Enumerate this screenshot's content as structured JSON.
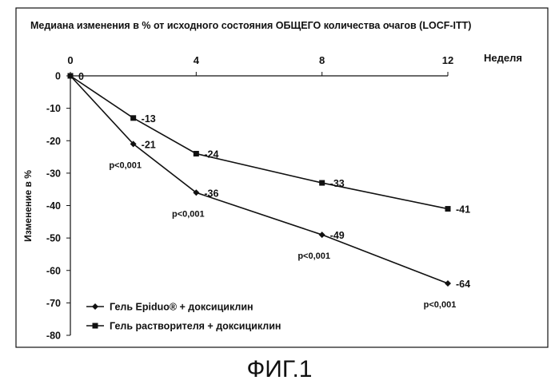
{
  "figure_caption": "ФИГ.1",
  "chart_data": {
    "type": "line",
    "title": "Медиана изменения в % от исходного состояния ОБЩЕГО количества очагов (LOCF-ITT)",
    "xlabel": "Неделя",
    "ylabel": "Изменение в %",
    "x_axis_position": "top",
    "x_ticks": [
      "0",
      "4",
      "8",
      "12"
    ],
    "y_ticks": [
      "0",
      "-10",
      "-20",
      "-30",
      "-40",
      "-50",
      "-60",
      "-70",
      "-80"
    ],
    "xlim": [
      0,
      12
    ],
    "ylim": [
      -80,
      0
    ],
    "grid": false,
    "legend_position": "bottom-left",
    "series": [
      {
        "name": "Гель Epiduo® + доксициклин",
        "marker": "diamond",
        "x": [
          0,
          2,
          4,
          8,
          12
        ],
        "y": [
          0,
          -21,
          -36,
          -49,
          -64
        ],
        "labels": [
          "",
          "-21",
          "-36",
          "-49",
          "-64"
        ]
      },
      {
        "name": "Гель растворителя + доксициклин",
        "marker": "square",
        "x": [
          0,
          2,
          4,
          8,
          12
        ],
        "y": [
          0,
          -13,
          -24,
          -33,
          -41
        ],
        "labels": [
          "0",
          "-13",
          "-24",
          "-33",
          "-41"
        ]
      }
    ],
    "annotations": [
      {
        "text": "p<0,001",
        "x": 2,
        "y": -21
      },
      {
        "text": "p<0,001",
        "x": 4,
        "y": -36
      },
      {
        "text": "p<0,001",
        "x": 8,
        "y": -49
      },
      {
        "text": "p<0,001",
        "x": 12,
        "y": -64
      }
    ]
  }
}
